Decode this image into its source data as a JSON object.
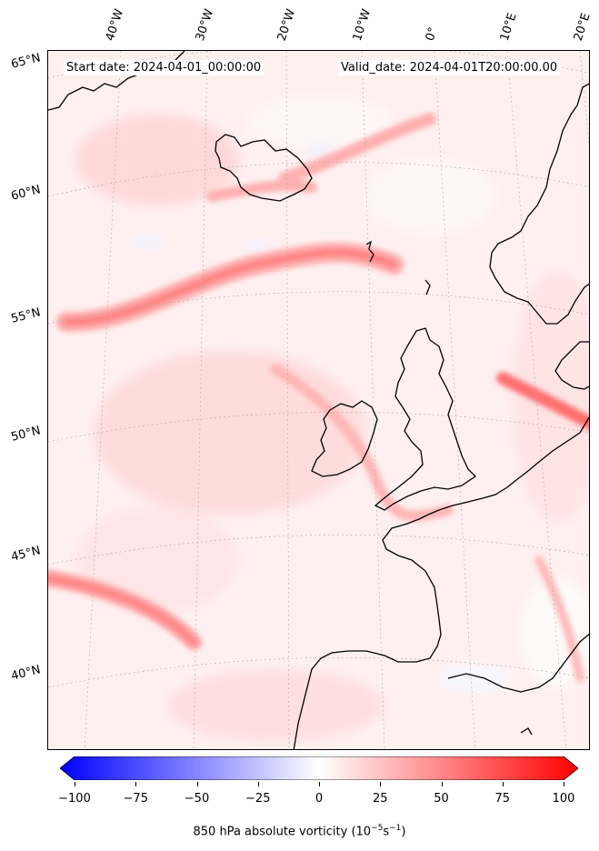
{
  "header": {
    "start_date": "Start date: 2024-04-01_00:00:00",
    "valid_date": "Valid_date: 2024-04-01T20:00:00.00"
  },
  "longitude_labels": [
    "40°W",
    "30°W",
    "20°W",
    "10°W",
    "0°",
    "10°E",
    "20°E"
  ],
  "latitude_labels": [
    "65°N",
    "60°N",
    "55°N",
    "50°N",
    "45°N",
    "40°N"
  ],
  "colorbar": {
    "title": "850 hPa absolute vorticity (10",
    "title_exp1": "−5",
    "title_mid": "s",
    "title_exp2": "−1",
    "title_end": ")",
    "ticks": [
      "−100",
      "−75",
      "−50",
      "−25",
      "0",
      "25",
      "50",
      "75",
      "100"
    ],
    "range": [
      -100,
      100
    ],
    "min_color": "#0000ff",
    "mid_color": "#ffffff",
    "max_color": "#ff0000"
  },
  "colors": {
    "background_field": "#fff3f3",
    "coastline": "#000000",
    "gridline": "#b0b0b0"
  }
}
